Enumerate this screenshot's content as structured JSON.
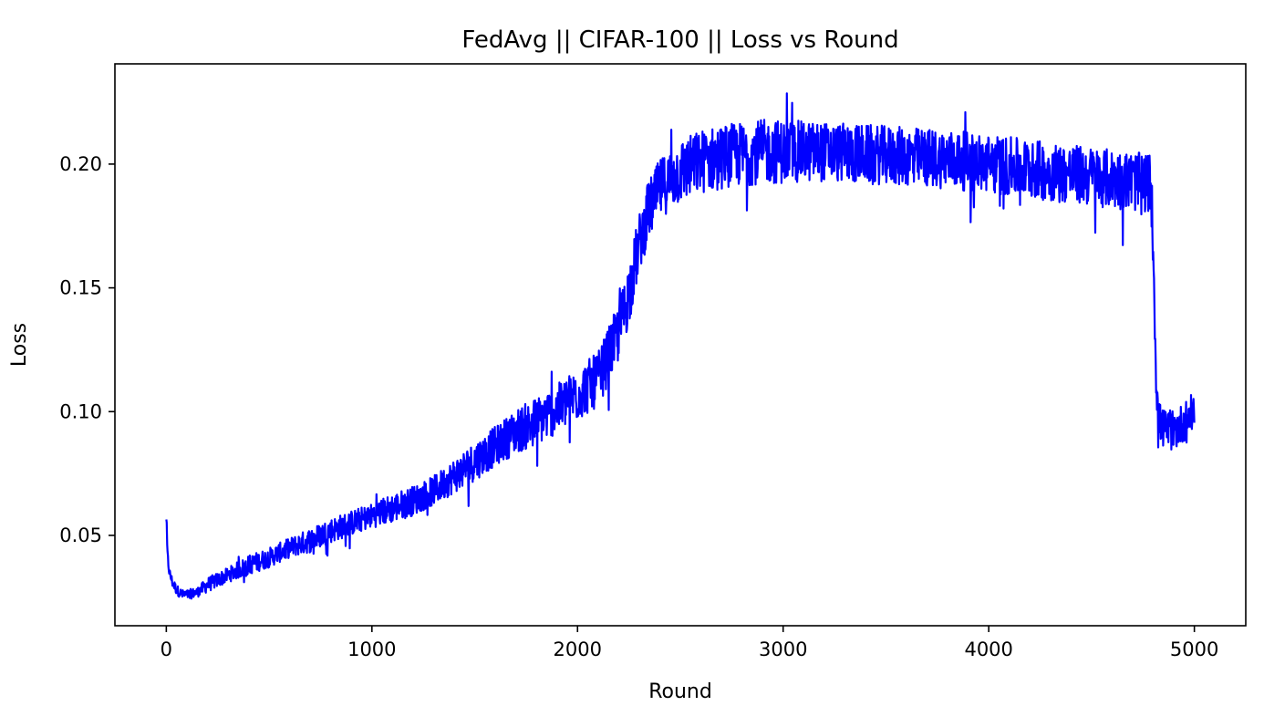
{
  "chart_data": {
    "type": "line",
    "title": "FedAvg || CIFAR-100 || Loss vs Round",
    "xlabel": "Round",
    "ylabel": "Loss",
    "xlim": [
      -250,
      5250
    ],
    "ylim": [
      0.0135,
      0.2405
    ],
    "xticks": [
      0,
      1000,
      2000,
      3000,
      4000,
      5000
    ],
    "xtick_labels": [
      "0",
      "1000",
      "2000",
      "3000",
      "4000",
      "5000"
    ],
    "yticks": [
      0.05,
      0.1,
      0.15,
      0.2
    ],
    "ytick_labels": [
      "0.05",
      "0.10",
      "0.15",
      "0.20"
    ],
    "grid": false,
    "colors": {
      "line": "#0000ff",
      "axes": "#000000",
      "background": "#ffffff"
    },
    "series": [
      {
        "color": "#0000ff",
        "x": [
          0,
          5,
          15,
          30,
          50,
          80,
          100,
          150,
          200,
          300,
          400,
          500,
          600,
          700,
          800,
          900,
          1000,
          1100,
          1200,
          1300,
          1400,
          1500,
          1600,
          1700,
          1800,
          1900,
          2000,
          2100,
          2200,
          2250,
          2300,
          2350,
          2400,
          2500,
          2600,
          2700,
          2800,
          2900,
          3000,
          3200,
          3400,
          3600,
          3800,
          4000,
          4200,
          4400,
          4600,
          4700,
          4790,
          4805,
          4815,
          4830,
          4850,
          4900,
          4950,
          5000
        ],
        "y": [
          0.058,
          0.042,
          0.035,
          0.031,
          0.028,
          0.026,
          0.026,
          0.027,
          0.03,
          0.034,
          0.038,
          0.041,
          0.045,
          0.048,
          0.052,
          0.055,
          0.058,
          0.061,
          0.064,
          0.068,
          0.074,
          0.08,
          0.086,
          0.092,
          0.096,
          0.101,
          0.107,
          0.113,
          0.132,
          0.148,
          0.168,
          0.182,
          0.19,
          0.197,
          0.201,
          0.203,
          0.204,
          0.205,
          0.205,
          0.205,
          0.204,
          0.203,
          0.202,
          0.2,
          0.198,
          0.196,
          0.194,
          0.193,
          0.192,
          0.15,
          0.11,
          0.096,
          0.093,
          0.092,
          0.096,
          0.1
        ],
        "noise": [
          0.004,
          0.003,
          0.002,
          0.002,
          0.002,
          0.002,
          0.002,
          0.002,
          0.003,
          0.003,
          0.004,
          0.004,
          0.004,
          0.005,
          0.005,
          0.005,
          0.005,
          0.006,
          0.006,
          0.006,
          0.007,
          0.008,
          0.008,
          0.009,
          0.01,
          0.01,
          0.011,
          0.011,
          0.012,
          0.013,
          0.012,
          0.012,
          0.012,
          0.013,
          0.013,
          0.013,
          0.013,
          0.013,
          0.013,
          0.012,
          0.012,
          0.012,
          0.012,
          0.012,
          0.012,
          0.012,
          0.012,
          0.012,
          0.012,
          0.01,
          0.008,
          0.008,
          0.008,
          0.008,
          0.008,
          0.008
        ]
      }
    ]
  }
}
